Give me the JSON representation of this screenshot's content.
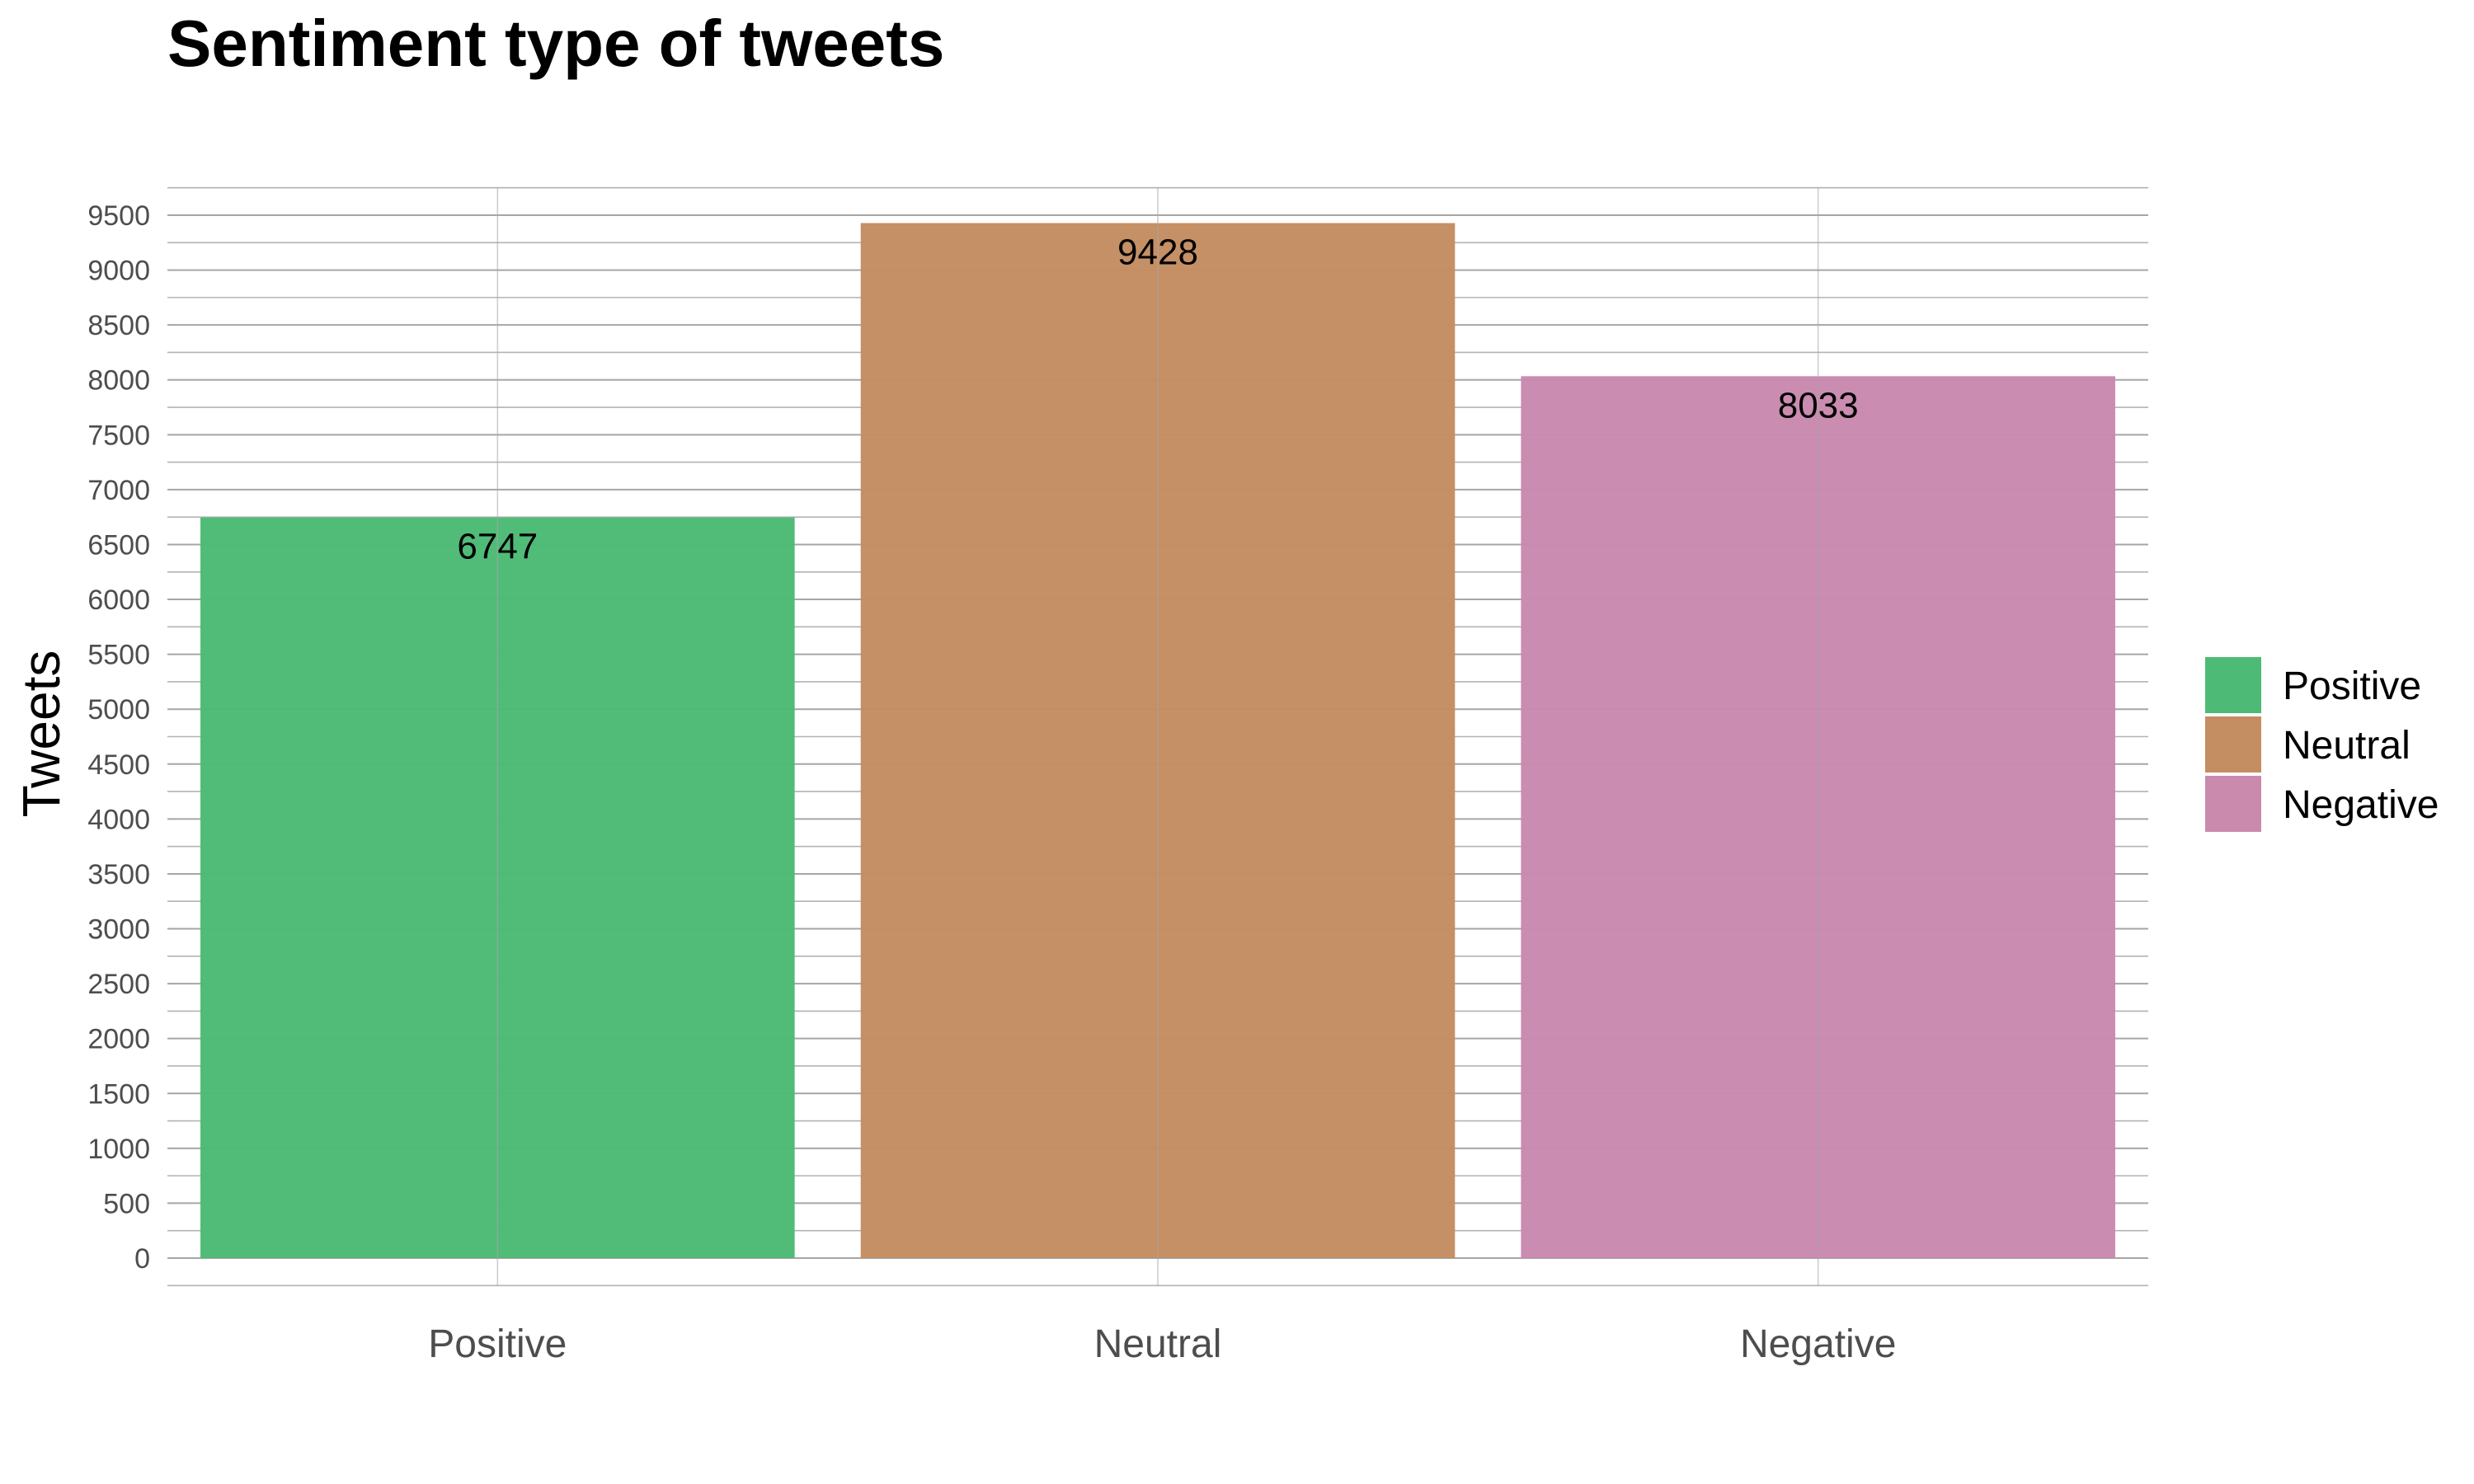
{
  "chart_data": {
    "type": "bar",
    "title": "Sentiment type of tweets",
    "xlabel": "",
    "ylabel": "Tweets",
    "categories": [
      "Positive",
      "Neutral",
      "Negative"
    ],
    "values": [
      6747,
      9428,
      8033
    ],
    "data_labels": [
      "6747",
      "9428",
      "8033"
    ],
    "colors": [
      "#4dbb75",
      "#c48e62",
      "#c98aae"
    ],
    "ylim": [
      -250,
      9750
    ],
    "yticks": [
      0,
      500,
      1000,
      1500,
      2000,
      2500,
      3000,
      3500,
      4000,
      4500,
      5000,
      5500,
      6000,
      6500,
      7000,
      7500,
      8000,
      8500,
      9000,
      9500
    ],
    "ytick_labels": [
      "0",
      "500",
      "1000",
      "1500",
      "2000",
      "2500",
      "3000",
      "3500",
      "4000",
      "4500",
      "5000",
      "5500",
      "6000",
      "6500",
      "7000",
      "7500",
      "8000",
      "8500",
      "9000",
      "9500"
    ],
    "grid": true,
    "legend": {
      "position": "right",
      "entries": [
        {
          "label": "Positive",
          "color": "#4dbb75"
        },
        {
          "label": "Neutral",
          "color": "#c48e62"
        },
        {
          "label": "Negative",
          "color": "#c98aae"
        }
      ]
    }
  }
}
